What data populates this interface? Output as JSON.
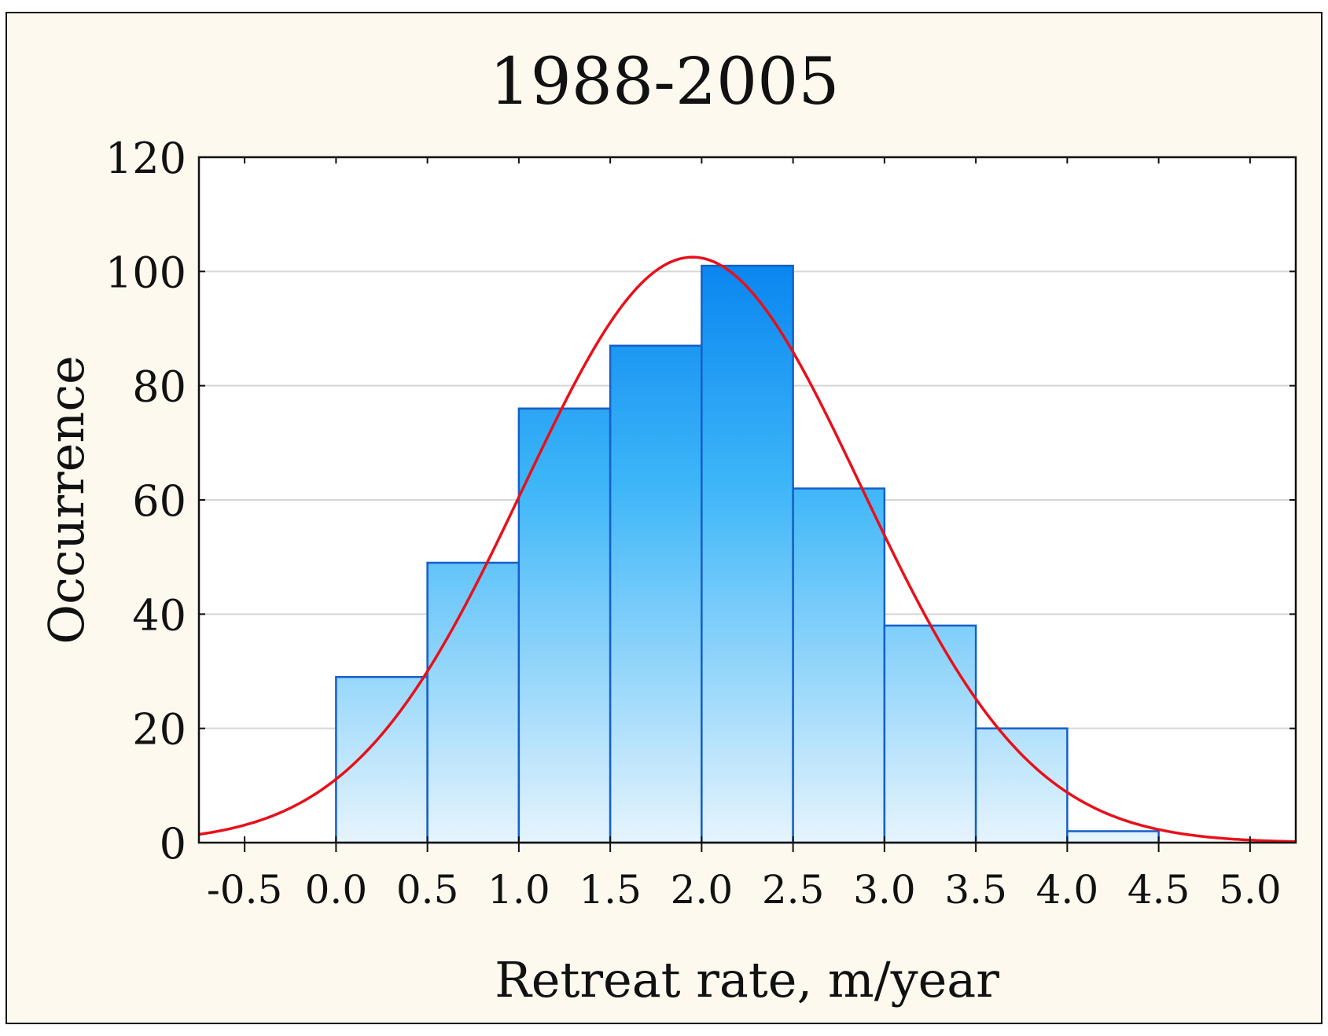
{
  "colors": {
    "panel_background": "#fdf9ef",
    "plot_background": "#ffffff",
    "bar_fill_top": "#0a86f0",
    "bar_fill_mid": "#3db6f8",
    "bar_fill_bottom": "#e6f4fd",
    "bar_stroke": "#1560c8",
    "curve": "#e8101a",
    "gridline": "#d6d6d6",
    "axis": "#111111"
  },
  "chart_data": {
    "type": "bar",
    "title": "1988-2005",
    "xlabel": "Retreat rate, m/year",
    "ylabel": "Occurrence",
    "xlim": [
      -0.75,
      5.25
    ],
    "ylim": [
      0,
      120
    ],
    "x_ticks": [
      "-0.5",
      "0.0",
      "0.5",
      "1.0",
      "1.5",
      "2.0",
      "2.5",
      "3.0",
      "3.5",
      "4.0",
      "4.5",
      "5.0"
    ],
    "y_ticks": [
      "0",
      "20",
      "40",
      "60",
      "80",
      "100",
      "120"
    ],
    "grid": "horizontal",
    "bins": [
      {
        "from": 0.0,
        "to": 0.5,
        "count": 29
      },
      {
        "from": 0.5,
        "to": 1.0,
        "count": 49
      },
      {
        "from": 1.0,
        "to": 1.5,
        "count": 76
      },
      {
        "from": 1.5,
        "to": 2.0,
        "count": 87
      },
      {
        "from": 2.0,
        "to": 2.5,
        "count": 101
      },
      {
        "from": 2.5,
        "to": 3.0,
        "count": 62
      },
      {
        "from": 3.0,
        "to": 3.5,
        "count": 38
      },
      {
        "from": 3.5,
        "to": 4.0,
        "count": 20
      },
      {
        "from": 4.0,
        "to": 4.5,
        "count": 2
      }
    ],
    "fitted_curve": {
      "type": "normal",
      "mean": 1.95,
      "std": 0.925,
      "peak": 102.5
    }
  }
}
